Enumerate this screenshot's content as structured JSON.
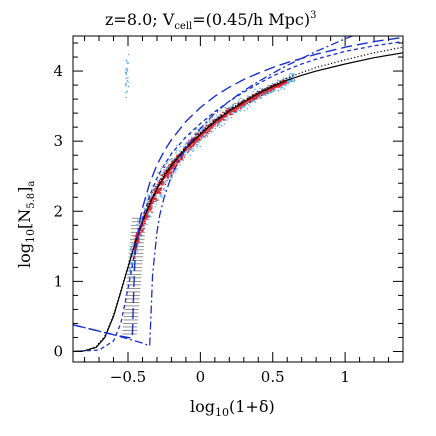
{
  "chart_data": {
    "type": "scatter",
    "title": "z=8.0; V",
    "title_sub": "cell",
    "title_rest": "=(0.45/h Mpc)",
    "title_sup": "3",
    "xlabel_pre": "log",
    "xlabel_sub": "10",
    "xlabel_post": "(1+δ)",
    "ylabel_pre": "log",
    "ylabel_sub": "10",
    "ylabel_mid": "[N",
    "ylabel_sub2": "5.8",
    "ylabel_post": "]",
    "ylabel_sub3": "a",
    "xlim": [
      -0.88,
      1.4
    ],
    "ylim": [
      -0.15,
      4.5
    ],
    "x_ticks": [
      -0.5,
      0,
      0.5,
      1
    ],
    "x_tick_labels": [
      "−0.5",
      "0",
      "0.5",
      "1"
    ],
    "y_ticks": [
      0,
      1,
      2,
      3,
      4
    ],
    "y_tick_labels": [
      "0",
      "1",
      "2",
      "3",
      "4"
    ],
    "grid": false,
    "colors": {
      "scatter_blue": "#5aa6e0",
      "scatter_red": "#e0202a",
      "model_blue": "#1a2fd0",
      "model_black": "#000000",
      "errorbar": "#777777"
    },
    "series": [
      {
        "style": "solid-black",
        "x": [
          -0.88,
          -0.8,
          -0.72,
          -0.66,
          -0.6,
          -0.55,
          -0.5,
          -0.45,
          -0.4,
          -0.35,
          -0.3,
          -0.25,
          -0.2,
          -0.15,
          -0.1,
          0,
          0.1,
          0.2,
          0.3,
          0.4,
          0.5,
          0.6,
          0.7,
          0.8,
          1.0,
          1.2,
          1.4
        ],
        "y": [
          0,
          0.01,
          0.06,
          0.2,
          0.5,
          0.85,
          1.2,
          1.55,
          1.85,
          2.1,
          2.32,
          2.5,
          2.65,
          2.78,
          2.9,
          3.1,
          3.28,
          3.43,
          3.56,
          3.68,
          3.78,
          3.87,
          3.94,
          4.0,
          4.1,
          4.19,
          4.26
        ]
      },
      {
        "style": "dotted-black",
        "x": [
          -0.88,
          -0.8,
          -0.72,
          -0.66,
          -0.6,
          -0.55,
          -0.5,
          -0.45,
          -0.4,
          -0.35,
          -0.3,
          -0.25,
          -0.2,
          -0.15,
          -0.1,
          0,
          0.1,
          0.2,
          0.3,
          0.4,
          0.5,
          0.6,
          0.7,
          0.8,
          1.0,
          1.2,
          1.4
        ],
        "y": [
          0,
          0.01,
          0.07,
          0.22,
          0.52,
          0.87,
          1.22,
          1.57,
          1.87,
          2.12,
          2.34,
          2.52,
          2.67,
          2.8,
          2.92,
          3.12,
          3.3,
          3.45,
          3.58,
          3.7,
          3.8,
          3.9,
          3.98,
          4.05,
          4.16,
          4.26,
          4.34
        ]
      },
      {
        "style": "longdash-blue",
        "x": [
          -0.88,
          -0.6,
          -0.5,
          -0.47,
          -0.46,
          -0.45,
          -0.42,
          -0.4,
          -0.35,
          -0.3,
          -0.25,
          -0.2,
          -0.1,
          0,
          0.1,
          0.2,
          0.3,
          0.4,
          0.5,
          0.6,
          0.8,
          1.0,
          1.2,
          1.4
        ],
        "y": [
          0.38,
          0.24,
          0.2,
          0.19,
          0.9,
          1.4,
          1.85,
          2.05,
          2.4,
          2.66,
          2.86,
          3.02,
          3.28,
          3.48,
          3.64,
          3.77,
          3.88,
          3.97,
          4.05,
          4.12,
          4.24,
          4.34,
          4.42,
          4.48
        ]
      },
      {
        "style": "dashdot-blue",
        "x": [
          -0.88,
          -0.6,
          -0.4,
          -0.35,
          -0.34,
          -0.33,
          -0.31,
          -0.3,
          -0.28,
          -0.25,
          -0.2,
          -0.15,
          -0.1,
          0,
          0.1,
          0.2,
          0.3,
          0.4,
          0.5,
          0.6,
          0.8,
          1.0,
          1.2,
          1.4
        ],
        "y": [
          0.38,
          0.24,
          0.12,
          0.08,
          0.6,
          1.1,
          1.5,
          1.7,
          1.95,
          2.2,
          2.5,
          2.72,
          2.9,
          3.18,
          3.4,
          3.57,
          3.72,
          3.85,
          3.97,
          4.08,
          4.28,
          4.46,
          4.62,
          4.75
        ]
      },
      {
        "style": "shortdash-blue",
        "x": [
          -0.88,
          -0.7,
          -0.6,
          -0.55,
          -0.5,
          -0.45,
          -0.4,
          -0.35,
          -0.3,
          -0.25,
          -0.2,
          -0.1,
          0,
          0.1,
          0.2,
          0.3,
          0.4,
          0.5,
          0.6,
          0.7,
          0.8,
          1.0,
          1.2,
          1.4
        ],
        "y": [
          0,
          0.02,
          0.15,
          0.4,
          0.9,
          1.45,
          1.9,
          2.22,
          2.47,
          2.66,
          2.82,
          3.06,
          3.25,
          3.42,
          3.57,
          3.7,
          3.82,
          3.93,
          4.02,
          4.1,
          4.17,
          4.28,
          4.36,
          4.42
        ]
      }
    ],
    "scatter_trend": {
      "x": [
        -0.5,
        -0.45,
        -0.4,
        -0.35,
        -0.3,
        -0.25,
        -0.2,
        -0.15,
        -0.1,
        0,
        0.1,
        0.2,
        0.3,
        0.4,
        0.5,
        0.6,
        0.65
      ],
      "y": [
        1.2,
        1.55,
        1.85,
        2.1,
        2.32,
        2.5,
        2.65,
        2.78,
        2.9,
        3.1,
        3.28,
        3.43,
        3.56,
        3.68,
        3.78,
        3.87,
        3.92
      ]
    }
  }
}
